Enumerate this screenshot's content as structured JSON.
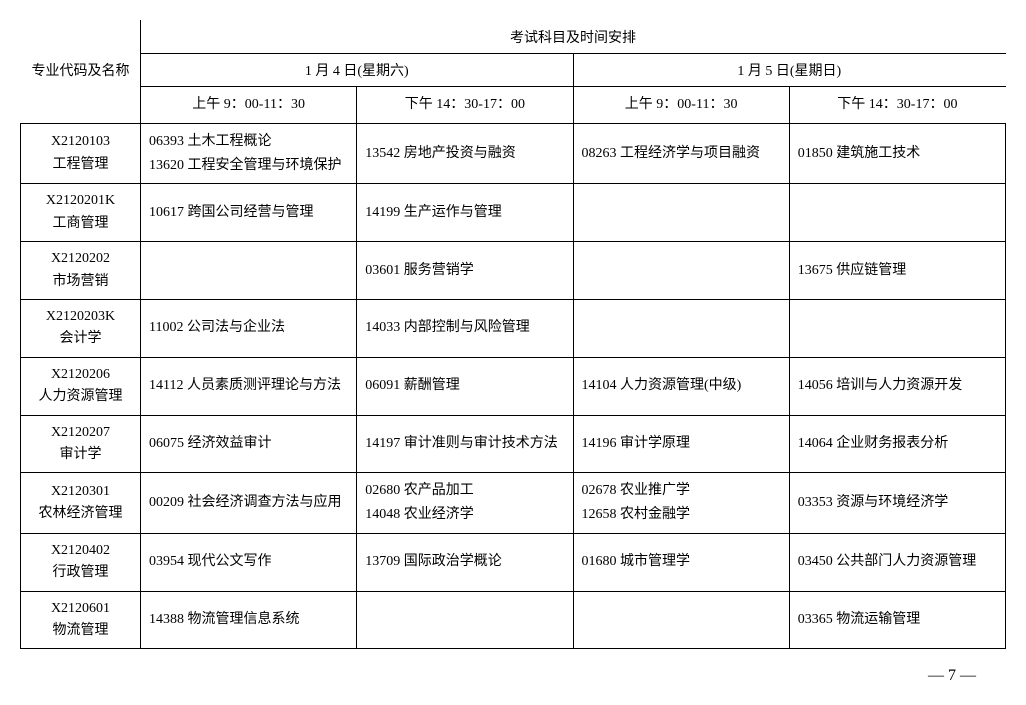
{
  "header": {
    "major_col": "专业代码及名称",
    "top": "考试科目及时间安排",
    "day1": "1 月 4 日(星期六)",
    "day2": "1 月 5 日(星期日)",
    "slot1": "上午 9：00-11：30",
    "slot2": "下午 14：30-17：00",
    "slot3": "上午 9：00-11：30",
    "slot4": "下午 14：30-17：00"
  },
  "rows": [
    {
      "code": "X2120103",
      "name": "工程管理",
      "s1": [
        "06393 土木工程概论",
        "13620 工程安全管理与环境保护"
      ],
      "s2": [
        "13542 房地产投资与融资"
      ],
      "s3": [
        "08263 工程经济学与项目融资"
      ],
      "s4": [
        "01850  建筑施工技术"
      ]
    },
    {
      "code": "X2120201K",
      "name": "工商管理",
      "s1": [
        "10617 跨国公司经营与管理"
      ],
      "s2": [
        "14199 生产运作与管理"
      ],
      "s3": [],
      "s4": []
    },
    {
      "code": "X2120202",
      "name": "市场营销",
      "s1": [],
      "s2": [
        "03601 服务营销学"
      ],
      "s3": [],
      "s4": [
        "13675 供应链管理"
      ]
    },
    {
      "code": "X2120203K",
      "name": "会计学",
      "s1": [
        "11002 公司法与企业法"
      ],
      "s2": [
        "14033 内部控制与风险管理"
      ],
      "s3": [],
      "s4": []
    },
    {
      "code": "X2120206",
      "name": "人力资源管理",
      "s1": [
        "14112 人员素质测评理论与方法"
      ],
      "s2": [
        "06091 薪酬管理"
      ],
      "s3": [
        "14104 人力资源管理(中级)"
      ],
      "s4": [
        "14056 培训与人力资源开发"
      ]
    },
    {
      "code": "X2120207",
      "name": "审计学",
      "s1": [
        "06075 经济效益审计"
      ],
      "s2": [
        "14197 审计准则与审计技术方法"
      ],
      "s3": [
        "14196 审计学原理"
      ],
      "s4": [
        "14064 企业财务报表分析"
      ]
    },
    {
      "code": "X2120301",
      "name": "农林经济管理",
      "s1": [
        "00209 社会经济调查方法与应用"
      ],
      "s2": [
        "02680 农产品加工",
        "14048 农业经济学"
      ],
      "s3": [
        "02678 农业推广学",
        "12658 农村金融学"
      ],
      "s4": [
        "03353 资源与环境经济学"
      ]
    },
    {
      "code": "X2120402",
      "name": "行政管理",
      "s1": [
        "03954 现代公文写作"
      ],
      "s2": [
        "13709 国际政治学概论"
      ],
      "s3": [
        "01680 城市管理学"
      ],
      "s4": [
        "03450 公共部门人力资源管理"
      ]
    },
    {
      "code": "X2120601",
      "name": "物流管理",
      "s1": [
        "14388 物流管理信息系统"
      ],
      "s2": [],
      "s3": [],
      "s4": [
        "03365 物流运输管理"
      ]
    }
  ],
  "page_number": "— 7 —"
}
